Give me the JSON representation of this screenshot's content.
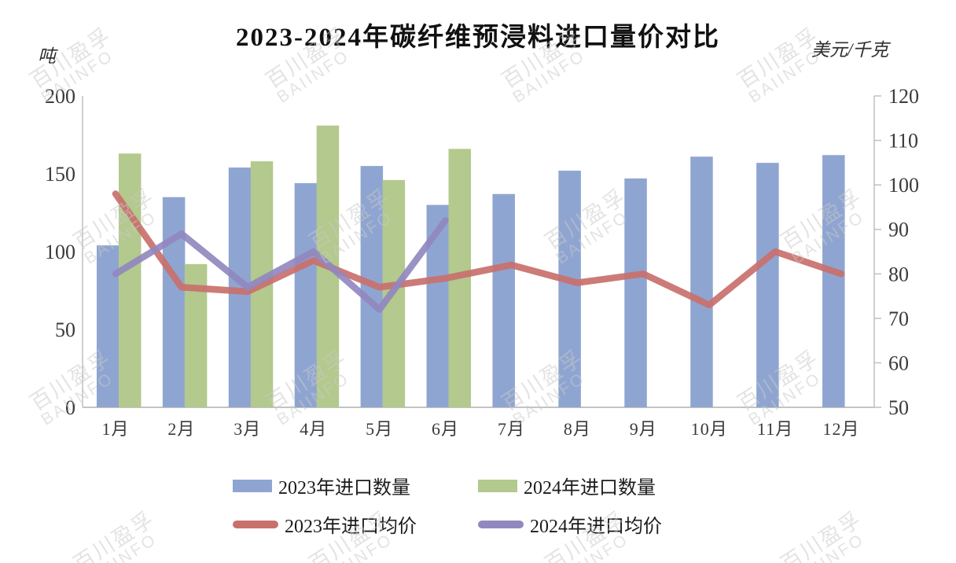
{
  "watermark": {
    "line1": "百川盈孚",
    "line2": "BAIINFO"
  },
  "chart_data": {
    "type": "bar",
    "subtype": "combo-bar-line-dual-axis",
    "title": "2023-2024年碳纤维预浸料进口量价对比",
    "xlabel": "",
    "ylabel": "吨",
    "y2label": "美元/千克",
    "grid": false,
    "legend_position": "bottom",
    "left_axis": {
      "unit": "吨",
      "min": 0,
      "max": 200,
      "ticks": [
        0,
        50,
        100,
        150,
        200
      ]
    },
    "right_axis": {
      "unit": "美元/千克",
      "min": 50,
      "max": 120,
      "ticks": [
        50,
        60,
        70,
        80,
        90,
        100,
        110,
        120
      ]
    },
    "categories": [
      "1月",
      "2月",
      "3月",
      "4月",
      "5月",
      "6月",
      "7月",
      "8月",
      "9月",
      "10月",
      "11月",
      "12月"
    ],
    "series": [
      {
        "name": "2023年进口数量",
        "type": "bar",
        "axis": "left",
        "color": "#8fa5d1",
        "values": [
          104,
          135,
          154,
          144,
          155,
          130,
          137,
          152,
          147,
          161,
          157,
          162
        ]
      },
      {
        "name": "2024年进口数量",
        "type": "bar",
        "axis": "left",
        "color": "#b3c98d",
        "values": [
          163,
          92,
          158,
          181,
          146,
          166,
          null,
          null,
          null,
          null,
          null,
          null
        ]
      },
      {
        "name": "2023年进口均价",
        "type": "line",
        "axis": "right",
        "color": "#c9706c",
        "values": [
          98,
          77,
          76,
          83,
          77,
          79,
          82,
          78,
          80,
          73,
          85,
          80
        ]
      },
      {
        "name": "2024年进口均价",
        "type": "line",
        "axis": "right",
        "color": "#9188bf",
        "values": [
          80,
          89,
          77,
          85,
          72,
          92,
          null,
          null,
          null,
          null,
          null,
          null
        ]
      }
    ]
  }
}
